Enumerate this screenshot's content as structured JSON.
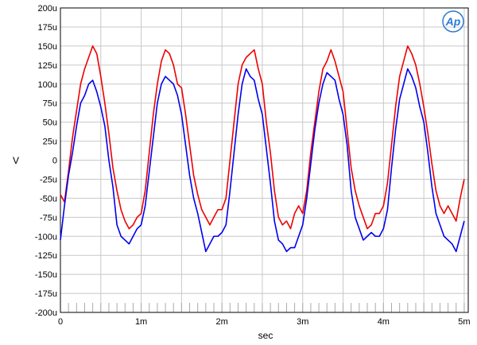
{
  "chart_data": {
    "type": "line",
    "title": "",
    "xlabel": "sec",
    "ylabel": "V",
    "xlim": [
      0,
      0.00505
    ],
    "ylim": [
      -0.0002,
      0.0002
    ],
    "grid": true,
    "logo_text": "Ap",
    "x_ticks": [
      {
        "value": 0,
        "label": "0"
      },
      {
        "value": 0.001,
        "label": "1m"
      },
      {
        "value": 0.002,
        "label": "2m"
      },
      {
        "value": 0.003,
        "label": "3m"
      },
      {
        "value": 0.004,
        "label": "4m"
      },
      {
        "value": 0.005,
        "label": "5m"
      }
    ],
    "y_ticks": [
      {
        "value": 0.0002,
        "label": "200u"
      },
      {
        "value": 0.000175,
        "label": "175u"
      },
      {
        "value": 0.00015,
        "label": "150u"
      },
      {
        "value": 0.000125,
        "label": "125u"
      },
      {
        "value": 0.0001,
        "label": "100u"
      },
      {
        "value": 7.5e-05,
        "label": "75u"
      },
      {
        "value": 5e-05,
        "label": "50u"
      },
      {
        "value": 2.5e-05,
        "label": "25u"
      },
      {
        "value": 0,
        "label": "0"
      },
      {
        "value": -2.5e-05,
        "label": "-25u"
      },
      {
        "value": -5e-05,
        "label": "-50u"
      },
      {
        "value": -7.5e-05,
        "label": "-75u"
      },
      {
        "value": -0.0001,
        "label": "-100u"
      },
      {
        "value": -0.000125,
        "label": "-125u"
      },
      {
        "value": -0.00015,
        "label": "-150u"
      },
      {
        "value": -0.000175,
        "label": "-175u"
      },
      {
        "value": -0.0002,
        "label": "-200u"
      }
    ],
    "series": [
      {
        "color": "#ee0000",
        "x": [
          0,
          5e-05,
          0.0001,
          0.00015,
          0.0002,
          0.00025,
          0.0003,
          0.00035,
          0.0004,
          0.00045,
          0.0005,
          0.00055,
          0.0006,
          0.00065,
          0.0007,
          0.00075,
          0.0008,
          0.00085,
          0.0009,
          0.00095,
          0.001,
          0.00105,
          0.0011,
          0.00115,
          0.0012,
          0.00125,
          0.0013,
          0.00135,
          0.0014,
          0.00145,
          0.0015,
          0.00155,
          0.0016,
          0.00165,
          0.0017,
          0.00175,
          0.0018,
          0.00185,
          0.0019,
          0.00195,
          0.002,
          0.00205,
          0.0021,
          0.00215,
          0.0022,
          0.00225,
          0.0023,
          0.00235,
          0.0024,
          0.00245,
          0.0025,
          0.00255,
          0.0026,
          0.00265,
          0.0027,
          0.00275,
          0.0028,
          0.00285,
          0.0029,
          0.00295,
          0.003,
          0.00305,
          0.0031,
          0.00315,
          0.0032,
          0.00325,
          0.0033,
          0.00335,
          0.0034,
          0.00345,
          0.0035,
          0.00355,
          0.0036,
          0.00365,
          0.0037,
          0.00375,
          0.0038,
          0.00385,
          0.0039,
          0.00395,
          0.004,
          0.00405,
          0.0041,
          0.00415,
          0.0042,
          0.00425,
          0.0043,
          0.00435,
          0.0044,
          0.00445,
          0.0045,
          0.00455,
          0.0046,
          0.00465,
          0.0047,
          0.00475,
          0.0048,
          0.00485,
          0.0049,
          0.00495,
          0.005
        ],
        "y": [
          -4.5e-05,
          -5.5e-05,
          -1.5e-05,
          3e-05,
          6.5e-05,
          0.0001,
          0.00012,
          0.000135,
          0.00015,
          0.00014,
          0.00011,
          7.5e-05,
          3.5e-05,
          -1e-05,
          -4e-05,
          -6.5e-05,
          -8e-05,
          -9e-05,
          -8.5e-05,
          -7.5e-05,
          -7e-05,
          -4e-05,
          1e-05,
          6e-05,
          0.0001,
          0.00013,
          0.000145,
          0.00014,
          0.000125,
          0.0001,
          9.5e-05,
          6e-05,
          2e-05,
          -2e-05,
          -4.5e-05,
          -6.5e-05,
          -7.5e-05,
          -8.5e-05,
          -7.5e-05,
          -6.5e-05,
          -6.5e-05,
          -5e-05,
          0.0,
          5e-05,
          0.0001,
          0.000125,
          0.000135,
          0.00014,
          0.000145,
          0.00012,
          0.0001,
          5e-05,
          1e-05,
          -4e-05,
          -7.5e-05,
          -8.5e-05,
          -8e-05,
          -9e-05,
          -7e-05,
          -6e-05,
          -7e-05,
          -4e-05,
          1e-05,
          5e-05,
          9e-05,
          0.00012,
          0.00013,
          0.000145,
          0.00013,
          0.00011,
          9e-05,
          4e-05,
          -1e-05,
          -4e-05,
          -6e-05,
          -7.5e-05,
          -9e-05,
          -8.5e-05,
          -7e-05,
          -7e-05,
          -6e-05,
          -3e-05,
          2e-05,
          7e-05,
          0.00011,
          0.00013,
          0.00015,
          0.00014,
          0.000125,
          0.0001,
          7e-05,
          3.5e-05,
          -5e-06,
          -4e-05,
          -6e-05,
          -7e-05,
          -6e-05,
          -7e-05,
          -8e-05,
          -5e-05,
          -2.5e-05
        ]
      },
      {
        "color": "#0000ee",
        "x": [
          0,
          5e-05,
          0.0001,
          0.00015,
          0.0002,
          0.00025,
          0.0003,
          0.00035,
          0.0004,
          0.00045,
          0.0005,
          0.00055,
          0.0006,
          0.00065,
          0.0007,
          0.00075,
          0.0008,
          0.00085,
          0.0009,
          0.00095,
          0.001,
          0.00105,
          0.0011,
          0.00115,
          0.0012,
          0.00125,
          0.0013,
          0.00135,
          0.0014,
          0.00145,
          0.0015,
          0.00155,
          0.0016,
          0.00165,
          0.0017,
          0.00175,
          0.0018,
          0.00185,
          0.0019,
          0.00195,
          0.002,
          0.00205,
          0.0021,
          0.00215,
          0.0022,
          0.00225,
          0.0023,
          0.00235,
          0.0024,
          0.00245,
          0.0025,
          0.00255,
          0.0026,
          0.00265,
          0.0027,
          0.00275,
          0.0028,
          0.00285,
          0.0029,
          0.00295,
          0.003,
          0.00305,
          0.0031,
          0.00315,
          0.0032,
          0.00325,
          0.0033,
          0.00335,
          0.0034,
          0.00345,
          0.0035,
          0.00355,
          0.0036,
          0.00365,
          0.0037,
          0.00375,
          0.0038,
          0.00385,
          0.0039,
          0.00395,
          0.004,
          0.00405,
          0.0041,
          0.00415,
          0.0042,
          0.00425,
          0.0043,
          0.00435,
          0.0044,
          0.00445,
          0.0045,
          0.00455,
          0.0046,
          0.00465,
          0.0047,
          0.00475,
          0.0048,
          0.00485,
          0.0049,
          0.00495,
          0.005
        ],
        "y": [
          -0.000105,
          -6e-05,
          -2e-05,
          1e-05,
          4.5e-05,
          7.5e-05,
          8.5e-05,
          0.0001,
          0.000105,
          9e-05,
          7e-05,
          4.5e-05,
          0.0,
          -3.5e-05,
          -8.5e-05,
          -0.0001,
          -0.000105,
          -0.00011,
          -0.0001,
          -9e-05,
          -8.5e-05,
          -6e-05,
          -1.5e-05,
          3e-05,
          7.5e-05,
          0.0001,
          0.00011,
          0.000105,
          0.0001,
          8.5e-05,
          6e-05,
          2e-05,
          -2e-05,
          -5e-05,
          -7e-05,
          -9.5e-05,
          -0.00012,
          -0.00011,
          -0.0001,
          -0.0001,
          -9.5e-05,
          -8.5e-05,
          -4e-05,
          1e-05,
          6e-05,
          0.0001,
          0.00012,
          0.00011,
          0.000105,
          8e-05,
          6e-05,
          1.5e-05,
          -3e-05,
          -8e-05,
          -0.000105,
          -0.00011,
          -0.00012,
          -0.000115,
          -0.000115,
          -0.0001,
          -8.5e-05,
          -5e-05,
          -5e-06,
          4e-05,
          7.5e-05,
          0.0001,
          0.000115,
          0.00011,
          0.000105,
          8e-05,
          6e-05,
          2e-05,
          -4e-05,
          -7.5e-05,
          -9e-05,
          -0.000105,
          -0.0001,
          -9.5e-05,
          -0.0001,
          -0.0001,
          -9e-05,
          -6.5e-05,
          -1e-05,
          4e-05,
          8e-05,
          0.0001,
          0.00012,
          0.00011,
          9.5e-05,
          7e-05,
          5e-05,
          1e-05,
          -3.5e-05,
          -7e-05,
          -8.5e-05,
          -0.0001,
          -0.000105,
          -0.00011,
          -0.00012,
          -0.0001,
          -8e-05
        ]
      }
    ]
  }
}
